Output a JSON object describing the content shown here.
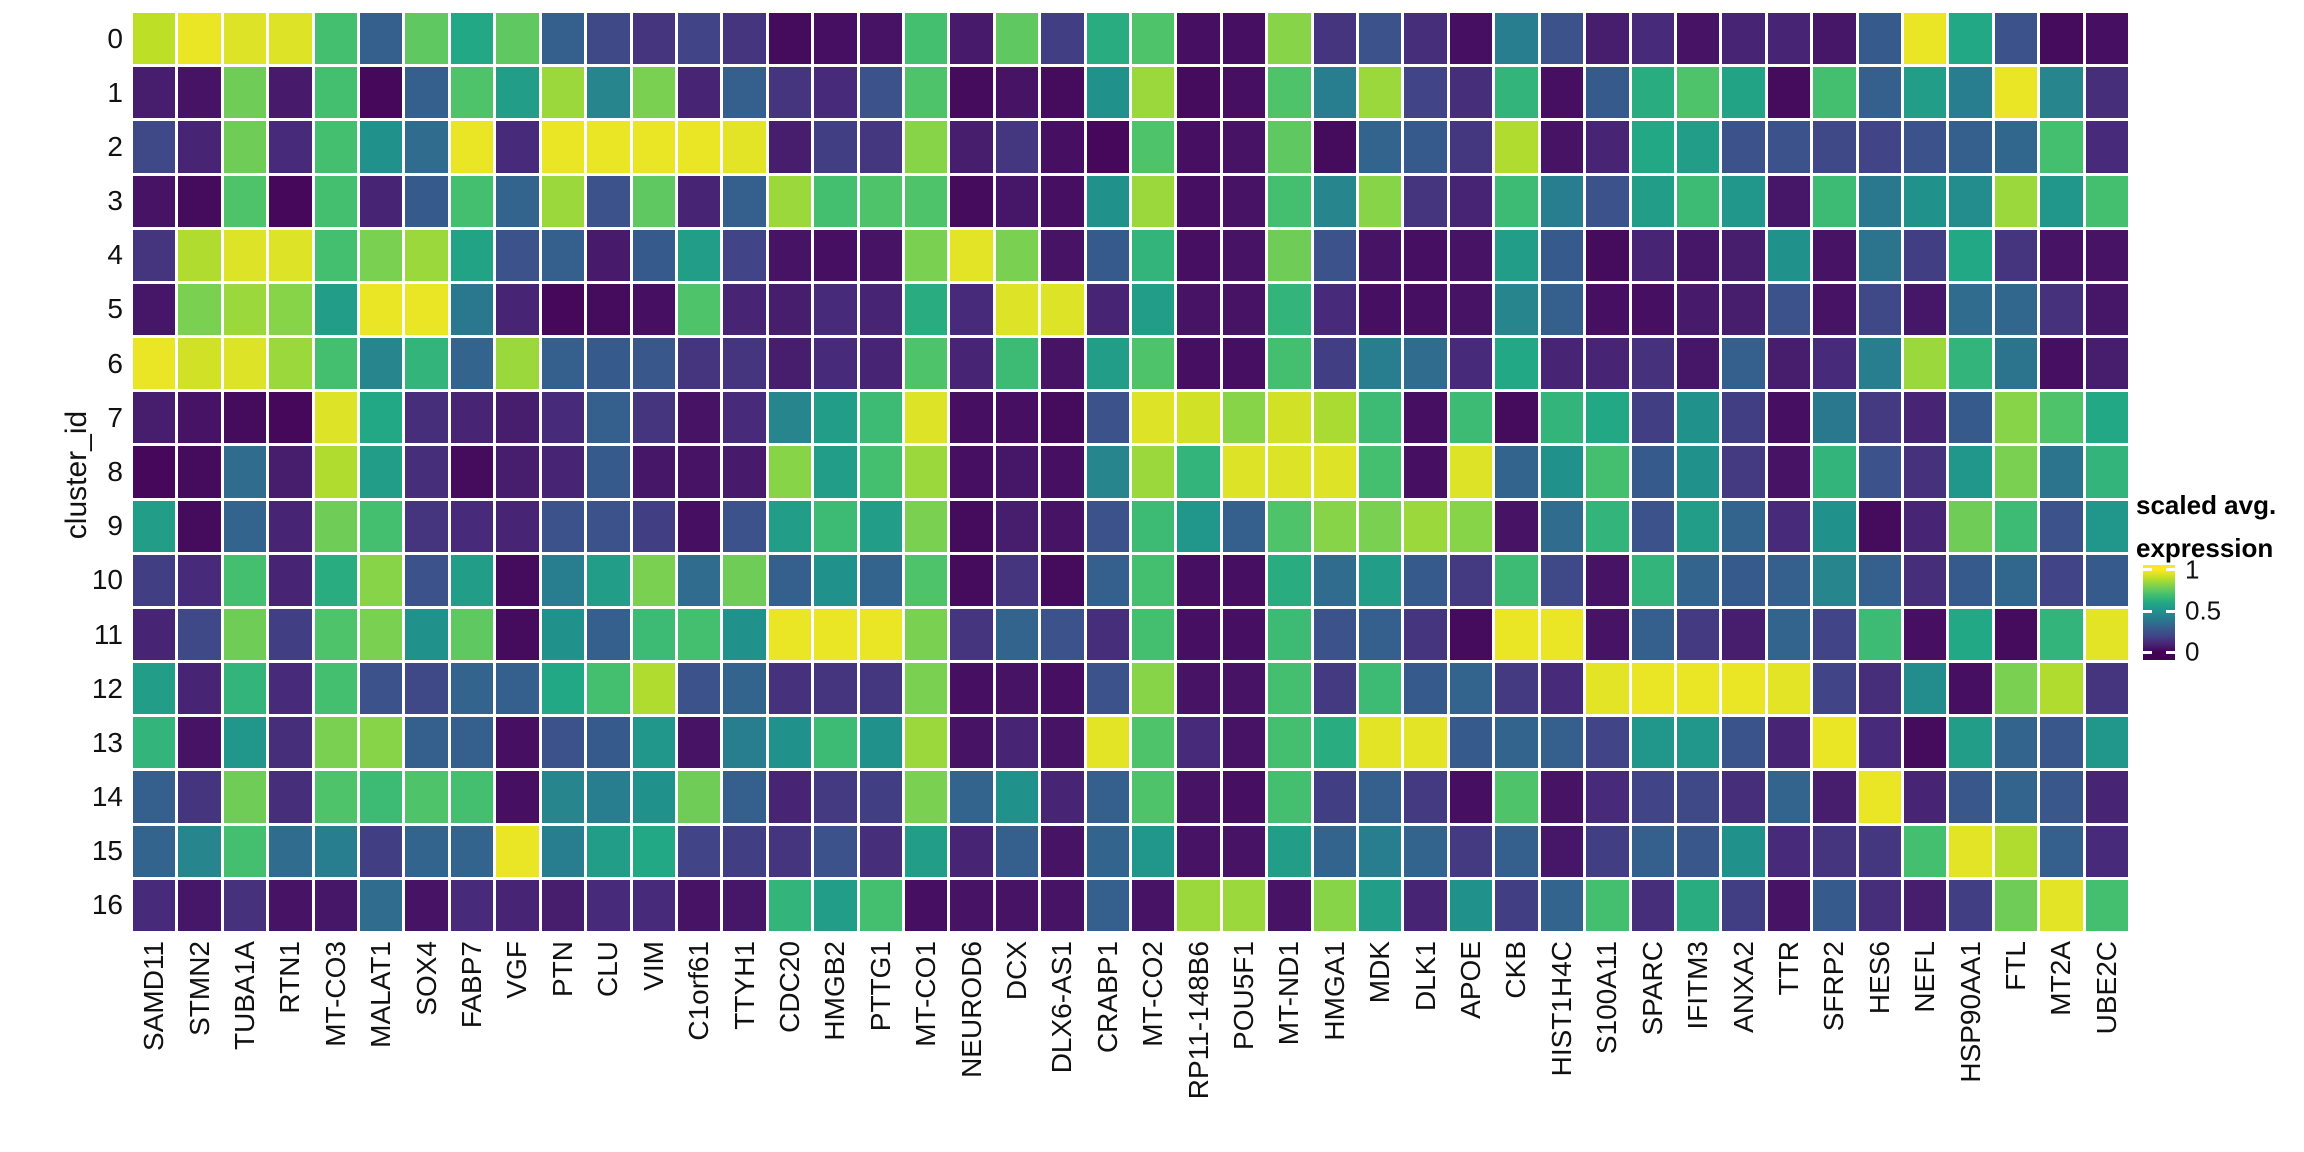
{
  "y_axis": {
    "title": "cluster_id"
  },
  "legend": {
    "title_lines": [
      "scaled avg.",
      "expression"
    ],
    "ticks": [
      {
        "label": "1",
        "value": 1.0
      },
      {
        "label": "0.5",
        "value": 0.5
      },
      {
        "label": "0",
        "value": 0.0
      }
    ]
  },
  "chart_data": {
    "type": "heatmap",
    "title": "",
    "xlabel": "",
    "ylabel": "cluster_id",
    "legend_title": "scaled avg. expression",
    "value_range": [
      0,
      1
    ],
    "grid": false,
    "legend_position": "right",
    "rows": [
      "0",
      "1",
      "2",
      "3",
      "4",
      "5",
      "6",
      "7",
      "8",
      "9",
      "10",
      "11",
      "12",
      "13",
      "14",
      "15",
      "16"
    ],
    "columns": [
      "SAMD11",
      "STMN2",
      "TUBA1A",
      "RTN1",
      "MT-CO3",
      "MALAT1",
      "SOX4",
      "FABP7",
      "VGF",
      "PTN",
      "CLU",
      "VIM",
      "C1orf61",
      "TTYH1",
      "CDC20",
      "HMGB2",
      "PTTG1",
      "MT-CO1",
      "NEUROD6",
      "DCX",
      "DLX6-AS1",
      "CRABP1",
      "MT-CO2",
      "RP11-148B6",
      "POU5F1",
      "MT-ND1",
      "HMGA1",
      "MDK",
      "DLK1",
      "APOE",
      "CKB",
      "HIST1H4C",
      "S100A11",
      "SPARC",
      "IFITM3",
      "ANXA2",
      "TTR",
      "SFRP2",
      "HES6",
      "NEFL",
      "HSP90AA1",
      "FTL",
      "MT2A",
      "UBE2C"
    ],
    "values": [
      [
        0.9,
        0.97,
        0.95,
        0.95,
        0.7,
        0.3,
        0.75,
        0.6,
        0.75,
        0.3,
        0.22,
        0.15,
        0.2,
        0.15,
        0.03,
        0.04,
        0.05,
        0.7,
        0.07,
        0.75,
        0.18,
        0.62,
        0.72,
        0.04,
        0.04,
        0.82,
        0.15,
        0.25,
        0.13,
        0.04,
        0.42,
        0.25,
        0.08,
        0.12,
        0.05,
        0.1,
        0.1,
        0.06,
        0.28,
        0.97,
        0.6,
        0.25,
        0.03,
        0.04
      ],
      [
        0.08,
        0.05,
        0.78,
        0.07,
        0.7,
        0.02,
        0.3,
        0.72,
        0.55,
        0.85,
        0.45,
        0.8,
        0.1,
        0.3,
        0.15,
        0.12,
        0.25,
        0.72,
        0.03,
        0.05,
        0.03,
        0.5,
        0.85,
        0.03,
        0.04,
        0.72,
        0.42,
        0.85,
        0.2,
        0.13,
        0.65,
        0.04,
        0.28,
        0.62,
        0.72,
        0.58,
        0.03,
        0.7,
        0.3,
        0.55,
        0.42,
        0.97,
        0.45,
        0.13
      ],
      [
        0.22,
        0.1,
        0.78,
        0.12,
        0.7,
        0.5,
        0.35,
        0.97,
        0.12,
        0.97,
        0.97,
        0.97,
        0.97,
        0.96,
        0.08,
        0.18,
        0.16,
        0.82,
        0.08,
        0.16,
        0.04,
        0.02,
        0.72,
        0.04,
        0.05,
        0.75,
        0.03,
        0.32,
        0.28,
        0.16,
        0.88,
        0.05,
        0.1,
        0.6,
        0.55,
        0.25,
        0.25,
        0.22,
        0.2,
        0.25,
        0.3,
        0.33,
        0.7,
        0.12
      ],
      [
        0.05,
        0.03,
        0.72,
        0.02,
        0.7,
        0.1,
        0.28,
        0.7,
        0.32,
        0.85,
        0.25,
        0.75,
        0.1,
        0.3,
        0.85,
        0.7,
        0.72,
        0.72,
        0.03,
        0.06,
        0.04,
        0.5,
        0.85,
        0.04,
        0.05,
        0.7,
        0.45,
        0.82,
        0.15,
        0.1,
        0.68,
        0.42,
        0.25,
        0.55,
        0.68,
        0.52,
        0.06,
        0.68,
        0.4,
        0.5,
        0.48,
        0.85,
        0.52,
        0.7
      ],
      [
        0.15,
        0.88,
        0.95,
        0.95,
        0.7,
        0.8,
        0.85,
        0.58,
        0.25,
        0.3,
        0.07,
        0.28,
        0.55,
        0.2,
        0.05,
        0.04,
        0.05,
        0.8,
        0.96,
        0.8,
        0.05,
        0.28,
        0.65,
        0.04,
        0.05,
        0.78,
        0.25,
        0.05,
        0.04,
        0.05,
        0.55,
        0.28,
        0.03,
        0.1,
        0.06,
        0.08,
        0.5,
        0.05,
        0.38,
        0.18,
        0.6,
        0.15,
        0.05,
        0.05
      ],
      [
        0.06,
        0.8,
        0.85,
        0.82,
        0.55,
        0.97,
        0.97,
        0.4,
        0.1,
        0.02,
        0.03,
        0.04,
        0.72,
        0.1,
        0.08,
        0.12,
        0.1,
        0.62,
        0.12,
        0.95,
        0.95,
        0.1,
        0.55,
        0.05,
        0.05,
        0.65,
        0.12,
        0.04,
        0.04,
        0.05,
        0.45,
        0.3,
        0.04,
        0.04,
        0.07,
        0.08,
        0.25,
        0.05,
        0.22,
        0.06,
        0.35,
        0.33,
        0.14,
        0.06
      ],
      [
        0.97,
        0.93,
        0.95,
        0.85,
        0.7,
        0.45,
        0.65,
        0.32,
        0.85,
        0.3,
        0.28,
        0.27,
        0.15,
        0.15,
        0.08,
        0.12,
        0.1,
        0.72,
        0.1,
        0.68,
        0.05,
        0.55,
        0.72,
        0.04,
        0.04,
        0.7,
        0.18,
        0.42,
        0.35,
        0.12,
        0.6,
        0.1,
        0.1,
        0.14,
        0.06,
        0.3,
        0.08,
        0.12,
        0.42,
        0.85,
        0.65,
        0.38,
        0.04,
        0.08
      ],
      [
        0.08,
        0.05,
        0.03,
        0.02,
        0.95,
        0.6,
        0.13,
        0.1,
        0.08,
        0.12,
        0.3,
        0.15,
        0.05,
        0.12,
        0.45,
        0.55,
        0.68,
        0.95,
        0.04,
        0.04,
        0.03,
        0.25,
        0.95,
        0.93,
        0.82,
        0.93,
        0.87,
        0.68,
        0.04,
        0.68,
        0.03,
        0.65,
        0.6,
        0.18,
        0.5,
        0.18,
        0.04,
        0.4,
        0.17,
        0.1,
        0.28,
        0.82,
        0.72,
        0.6
      ],
      [
        0.02,
        0.03,
        0.35,
        0.08,
        0.88,
        0.55,
        0.13,
        0.03,
        0.08,
        0.1,
        0.28,
        0.06,
        0.05,
        0.07,
        0.82,
        0.55,
        0.7,
        0.85,
        0.04,
        0.06,
        0.04,
        0.45,
        0.85,
        0.65,
        0.95,
        0.95,
        0.95,
        0.7,
        0.04,
        0.95,
        0.32,
        0.5,
        0.7,
        0.28,
        0.5,
        0.17,
        0.05,
        0.65,
        0.25,
        0.14,
        0.52,
        0.8,
        0.38,
        0.65
      ],
      [
        0.55,
        0.03,
        0.32,
        0.1,
        0.78,
        0.7,
        0.15,
        0.12,
        0.1,
        0.25,
        0.25,
        0.18,
        0.04,
        0.25,
        0.55,
        0.68,
        0.55,
        0.8,
        0.03,
        0.08,
        0.05,
        0.25,
        0.68,
        0.52,
        0.3,
        0.72,
        0.82,
        0.8,
        0.85,
        0.82,
        0.05,
        0.35,
        0.65,
        0.25,
        0.55,
        0.32,
        0.12,
        0.5,
        0.03,
        0.1,
        0.78,
        0.68,
        0.25,
        0.52
      ],
      [
        0.18,
        0.12,
        0.7,
        0.1,
        0.62,
        0.82,
        0.25,
        0.55,
        0.03,
        0.42,
        0.55,
        0.8,
        0.35,
        0.78,
        0.3,
        0.5,
        0.32,
        0.72,
        0.03,
        0.15,
        0.03,
        0.3,
        0.7,
        0.04,
        0.04,
        0.62,
        0.35,
        0.55,
        0.28,
        0.17,
        0.68,
        0.22,
        0.05,
        0.65,
        0.32,
        0.28,
        0.3,
        0.45,
        0.3,
        0.13,
        0.28,
        0.33,
        0.2,
        0.28
      ],
      [
        0.1,
        0.22,
        0.78,
        0.18,
        0.72,
        0.8,
        0.5,
        0.75,
        0.03,
        0.5,
        0.3,
        0.68,
        0.7,
        0.5,
        0.97,
        0.97,
        0.97,
        0.8,
        0.15,
        0.32,
        0.25,
        0.13,
        0.7,
        0.04,
        0.04,
        0.68,
        0.25,
        0.3,
        0.15,
        0.03,
        0.97,
        0.97,
        0.05,
        0.3,
        0.17,
        0.08,
        0.32,
        0.2,
        0.68,
        0.04,
        0.6,
        0.03,
        0.65,
        0.96
      ],
      [
        0.55,
        0.1,
        0.65,
        0.12,
        0.7,
        0.25,
        0.22,
        0.32,
        0.3,
        0.6,
        0.7,
        0.88,
        0.25,
        0.32,
        0.14,
        0.15,
        0.16,
        0.8,
        0.04,
        0.05,
        0.04,
        0.25,
        0.82,
        0.05,
        0.05,
        0.7,
        0.17,
        0.68,
        0.28,
        0.32,
        0.17,
        0.12,
        0.96,
        0.97,
        0.97,
        0.97,
        0.96,
        0.2,
        0.13,
        0.48,
        0.04,
        0.8,
        0.88,
        0.15
      ],
      [
        0.65,
        0.05,
        0.52,
        0.13,
        0.8,
        0.82,
        0.3,
        0.3,
        0.04,
        0.25,
        0.28,
        0.52,
        0.05,
        0.42,
        0.5,
        0.68,
        0.5,
        0.85,
        0.05,
        0.1,
        0.05,
        0.96,
        0.72,
        0.12,
        0.05,
        0.7,
        0.62,
        0.96,
        0.96,
        0.28,
        0.32,
        0.3,
        0.2,
        0.52,
        0.52,
        0.26,
        0.1,
        0.97,
        0.12,
        0.03,
        0.55,
        0.32,
        0.27,
        0.52
      ],
      [
        0.3,
        0.15,
        0.78,
        0.13,
        0.72,
        0.68,
        0.72,
        0.7,
        0.04,
        0.45,
        0.42,
        0.5,
        0.78,
        0.3,
        0.1,
        0.17,
        0.18,
        0.8,
        0.32,
        0.5,
        0.1,
        0.3,
        0.72,
        0.05,
        0.04,
        0.7,
        0.18,
        0.3,
        0.17,
        0.04,
        0.72,
        0.05,
        0.12,
        0.2,
        0.22,
        0.13,
        0.32,
        0.08,
        0.97,
        0.1,
        0.27,
        0.32,
        0.27,
        0.1
      ],
      [
        0.32,
        0.45,
        0.7,
        0.35,
        0.42,
        0.18,
        0.32,
        0.32,
        0.97,
        0.42,
        0.55,
        0.6,
        0.2,
        0.18,
        0.15,
        0.25,
        0.13,
        0.55,
        0.1,
        0.3,
        0.05,
        0.32,
        0.52,
        0.05,
        0.05,
        0.55,
        0.32,
        0.42,
        0.32,
        0.17,
        0.3,
        0.06,
        0.18,
        0.3,
        0.27,
        0.5,
        0.12,
        0.15,
        0.16,
        0.7,
        0.96,
        0.88,
        0.3,
        0.12
      ],
      [
        0.12,
        0.06,
        0.14,
        0.05,
        0.06,
        0.35,
        0.05,
        0.12,
        0.1,
        0.08,
        0.12,
        0.12,
        0.05,
        0.06,
        0.65,
        0.55,
        0.7,
        0.04,
        0.05,
        0.05,
        0.05,
        0.3,
        0.05,
        0.85,
        0.85,
        0.05,
        0.82,
        0.55,
        0.1,
        0.5,
        0.18,
        0.32,
        0.7,
        0.13,
        0.62,
        0.18,
        0.05,
        0.28,
        0.13,
        0.08,
        0.18,
        0.78,
        0.96,
        0.7
      ]
    ],
    "colormap": [
      [
        0.0,
        "#440154"
      ],
      [
        0.1,
        "#482475"
      ],
      [
        0.2,
        "#414487"
      ],
      [
        0.3,
        "#355f8d"
      ],
      [
        0.4,
        "#2a788e"
      ],
      [
        0.5,
        "#21918c"
      ],
      [
        0.6,
        "#22a884"
      ],
      [
        0.7,
        "#44bf70"
      ],
      [
        0.8,
        "#7ad151"
      ],
      [
        0.9,
        "#bddf26"
      ],
      [
        1.0,
        "#fde725"
      ]
    ],
    "colors": {
      "background": "#ffffff",
      "cell_gap": "#ffffff",
      "axis_text": "#111111",
      "min_color": "#440154",
      "max_color": "#fde725"
    }
  }
}
